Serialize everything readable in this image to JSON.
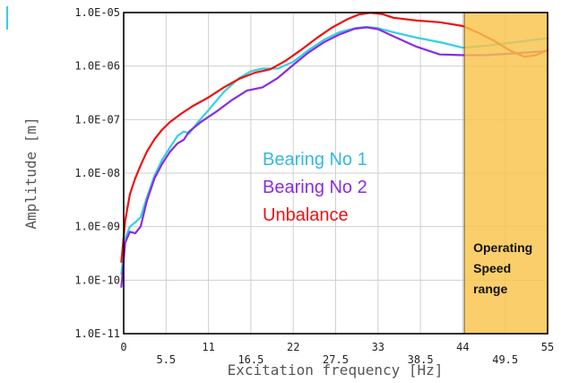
{
  "chart_data": {
    "type": "line",
    "title": "",
    "xlabel": "Excitation frequency [Hz]",
    "ylabel": "Amplitude [m]",
    "xlim": [
      0,
      55
    ],
    "ylim": [
      1e-11,
      1e-05
    ],
    "y_scale": "log",
    "grid": true,
    "x_ticks": [
      {
        "value": 0,
        "label": "0"
      },
      {
        "value": 5.5,
        "label": "5.5"
      },
      {
        "value": 11,
        "label": "11"
      },
      {
        "value": 16.5,
        "label": "16.5"
      },
      {
        "value": 22,
        "label": "22"
      },
      {
        "value": 27.5,
        "label": "27.5"
      },
      {
        "value": 33,
        "label": "33"
      },
      {
        "value": 38.5,
        "label": "38.5"
      },
      {
        "value": 44,
        "label": "44"
      },
      {
        "value": 49.5,
        "label": "49.5"
      },
      {
        "value": 55,
        "label": "55"
      }
    ],
    "y_ticks": [
      {
        "value": 1e-05,
        "label": "1.0E-05"
      },
      {
        "value": 1e-06,
        "label": "1.0E-06"
      },
      {
        "value": 1e-07,
        "label": "1.0E-07"
      },
      {
        "value": 1e-08,
        "label": "1.0E-08"
      },
      {
        "value": 1e-09,
        "label": "1.0E-09"
      },
      {
        "value": 1e-10,
        "label": "1.0E-10"
      },
      {
        "value": 1e-11,
        "label": "1.0E-11"
      }
    ],
    "legend_placement": "center",
    "series": [
      {
        "name": "Bearing No 1",
        "color": "#33d1e0",
        "x": [
          -0.3,
          0.2,
          0.8,
          1.5,
          2.2,
          3.0,
          4.0,
          5.0,
          6.0,
          7.0,
          7.8,
          8.5,
          9.5,
          11.0,
          13.0,
          15.0,
          16.5,
          18.0,
          20.0,
          22.0,
          24.0,
          26.0,
          28.0,
          30.0,
          31.5,
          33.0,
          35.0,
          38.0,
          41.0,
          44.0,
          47.0,
          50.0,
          52.5,
          55.0
        ],
        "y": [
          1.3e-10,
          6e-10,
          1e-09,
          1.2e-09,
          1.5e-09,
          3.5e-09,
          9e-09,
          1.8e-08,
          3e-08,
          5e-08,
          6e-08,
          5.5e-08,
          8.5e-08,
          1.5e-07,
          3.3e-07,
          6e-07,
          8e-07,
          9e-07,
          9e-07,
          1.2e-06,
          2e-06,
          3.1e-06,
          4.3e-06,
          5.1e-06,
          5.4e-06,
          5.1e-06,
          4.3e-06,
          3.4e-06,
          2.8e-06,
          2.2e-06,
          2.4e-06,
          2.7e-06,
          3e-06,
          3.3e-06
        ]
      },
      {
        "name": "Bearing No 2",
        "color": "#8a2be2",
        "x": [
          -0.3,
          0.2,
          0.8,
          1.5,
          2.2,
          3.0,
          4.0,
          5.0,
          6.0,
          7.0,
          7.8,
          8.5,
          10.0,
          12.0,
          14.0,
          16.0,
          18.0,
          20.0,
          22.0,
          24.0,
          26.0,
          28.0,
          30.0,
          31.5,
          33.0,
          35.0,
          38.0,
          41.0,
          44.0,
          47.0,
          50.0,
          55.0
        ],
        "y": [
          7.5e-11,
          5e-10,
          8e-10,
          7.5e-10,
          1e-09,
          3e-09,
          8e-09,
          1.5e-08,
          2.5e-08,
          3.6e-08,
          4.2e-08,
          6e-08,
          9e-08,
          1.4e-07,
          2.3e-07,
          3.5e-07,
          4e-07,
          6e-07,
          1.05e-06,
          1.8e-06,
          2.8e-06,
          3.9e-06,
          5e-06,
          5.3e-06,
          4.9e-06,
          3.6e-06,
          2.3e-06,
          1.65e-06,
          1.6e-06,
          1.6e-06,
          1.7e-06,
          1.9e-06
        ]
      },
      {
        "name": "Unbalance",
        "color": "#ee1111",
        "x": [
          -0.3,
          0.2,
          0.8,
          1.5,
          2.2,
          3.0,
          4.0,
          5.0,
          6.0,
          7.5,
          9.0,
          11.0,
          13.0,
          15.0,
          17.0,
          19.0,
          21.0,
          23.0,
          25.0,
          27.0,
          29.0,
          30.5,
          32.0,
          33.5,
          35.0,
          38.0,
          41.0,
          44.0,
          46.0,
          48.0,
          50.0,
          52.0,
          53.5,
          55.0
        ],
        "y": [
          2.2e-10,
          1.3e-09,
          4e-09,
          8e-09,
          1.4e-08,
          2.5e-08,
          4.3e-08,
          6.5e-08,
          9e-08,
          1.3e-07,
          1.8e-07,
          2.6e-07,
          4e-07,
          5.8e-07,
          7.5e-07,
          8.7e-07,
          1.25e-06,
          2e-06,
          3.3e-06,
          5.2e-06,
          7.5e-06,
          9.2e-06,
          9.9e-06,
          9.4e-06,
          8e-06,
          7.1e-06,
          6.6e-06,
          5.6e-06,
          4.2e-06,
          3e-06,
          2e-06,
          1.5e-06,
          1.6e-06,
          2e-06
        ]
      }
    ],
    "band": {
      "x_range": [
        44.2,
        55
      ],
      "color": "#f8c34a",
      "label_lines": [
        "Operating",
        "Speed",
        "range"
      ]
    }
  }
}
